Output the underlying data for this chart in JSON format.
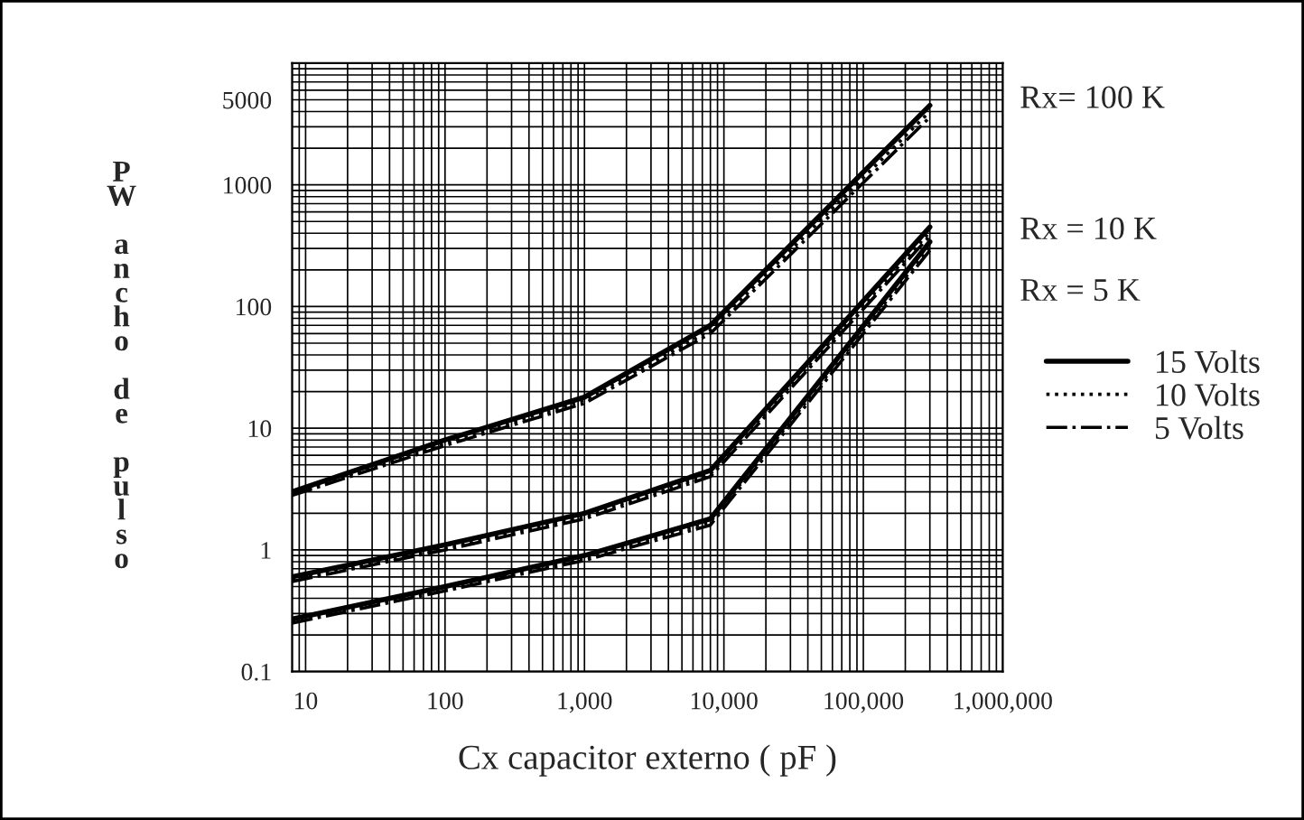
{
  "chart_data": {
    "type": "line",
    "xlabel": "Cx capacitor externo ( pF )",
    "ylabel": "PW ancho de pulso",
    "log": "xy",
    "grid": true,
    "legend": "right",
    "marker": "none",
    "xlim": [
      8,
      1000000
    ],
    "xticks": [
      10,
      100,
      {
        "value": 1000,
        "label": "1,000"
      },
      {
        "value": 10000,
        "label": "10,000"
      },
      {
        "value": 100000,
        "label": "100,000"
      },
      {
        "value": 1000000,
        "label": "1,000,000"
      }
    ],
    "ylim": [
      0.1,
      10000
    ],
    "yticks": [
      0.1,
      1,
      10,
      100,
      1000,
      5000
    ],
    "series": [
      {
        "name": "15 Volts",
        "color": "#000000",
        "line_style": "solid",
        "x": [
          8,
          100,
          1000,
          8000,
          300000
        ],
        "values": [
          3,
          8,
          18,
          70,
          4500
        ]
      },
      {
        "name": "10 Volts",
        "color": "#000000",
        "line_style": "dotted",
        "x": [
          8,
          100,
          1000,
          8000,
          300000
        ],
        "values": [
          2.9,
          7.6,
          17,
          64,
          4000
        ]
      },
      {
        "name": "5 Volts",
        "color": "#000000",
        "line_style": "dashdot",
        "x": [
          8,
          100,
          1000,
          8000,
          300000
        ],
        "values": [
          2.8,
          7.2,
          16,
          60,
          3600
        ]
      },
      {
        "color": "#000000",
        "line_style": "solid",
        "x": [
          8,
          100,
          1000,
          8000,
          300000
        ],
        "values": [
          0.6,
          1.1,
          2,
          4.5,
          450
        ]
      },
      {
        "color": "#000000",
        "line_style": "dotted",
        "x": [
          8,
          100,
          1000,
          8000,
          300000
        ],
        "values": [
          0.57,
          1.05,
          1.9,
          4.2,
          410
        ]
      },
      {
        "color": "#000000",
        "line_style": "dashdot",
        "x": [
          8,
          100,
          1000,
          8000,
          300000
        ],
        "values": [
          0.55,
          1,
          1.8,
          4,
          380
        ]
      },
      {
        "color": "#000000",
        "line_style": "solid",
        "x": [
          8,
          100,
          1000,
          8000,
          300000
        ],
        "values": [
          0.27,
          0.5,
          0.9,
          1.8,
          340
        ]
      },
      {
        "color": "#000000",
        "line_style": "dotted",
        "x": [
          8,
          100,
          1000,
          8000,
          300000
        ],
        "values": [
          0.26,
          0.48,
          0.86,
          1.7,
          310
        ]
      },
      {
        "color": "#000000",
        "line_style": "dashdot",
        "x": [
          8,
          100,
          1000,
          8000,
          300000
        ],
        "values": [
          0.25,
          0.46,
          0.82,
          1.6,
          290
        ]
      }
    ],
    "annotations": [
      "Rx= 100 K",
      "Rx = 10 K",
      "Rx = 5 K"
    ]
  }
}
